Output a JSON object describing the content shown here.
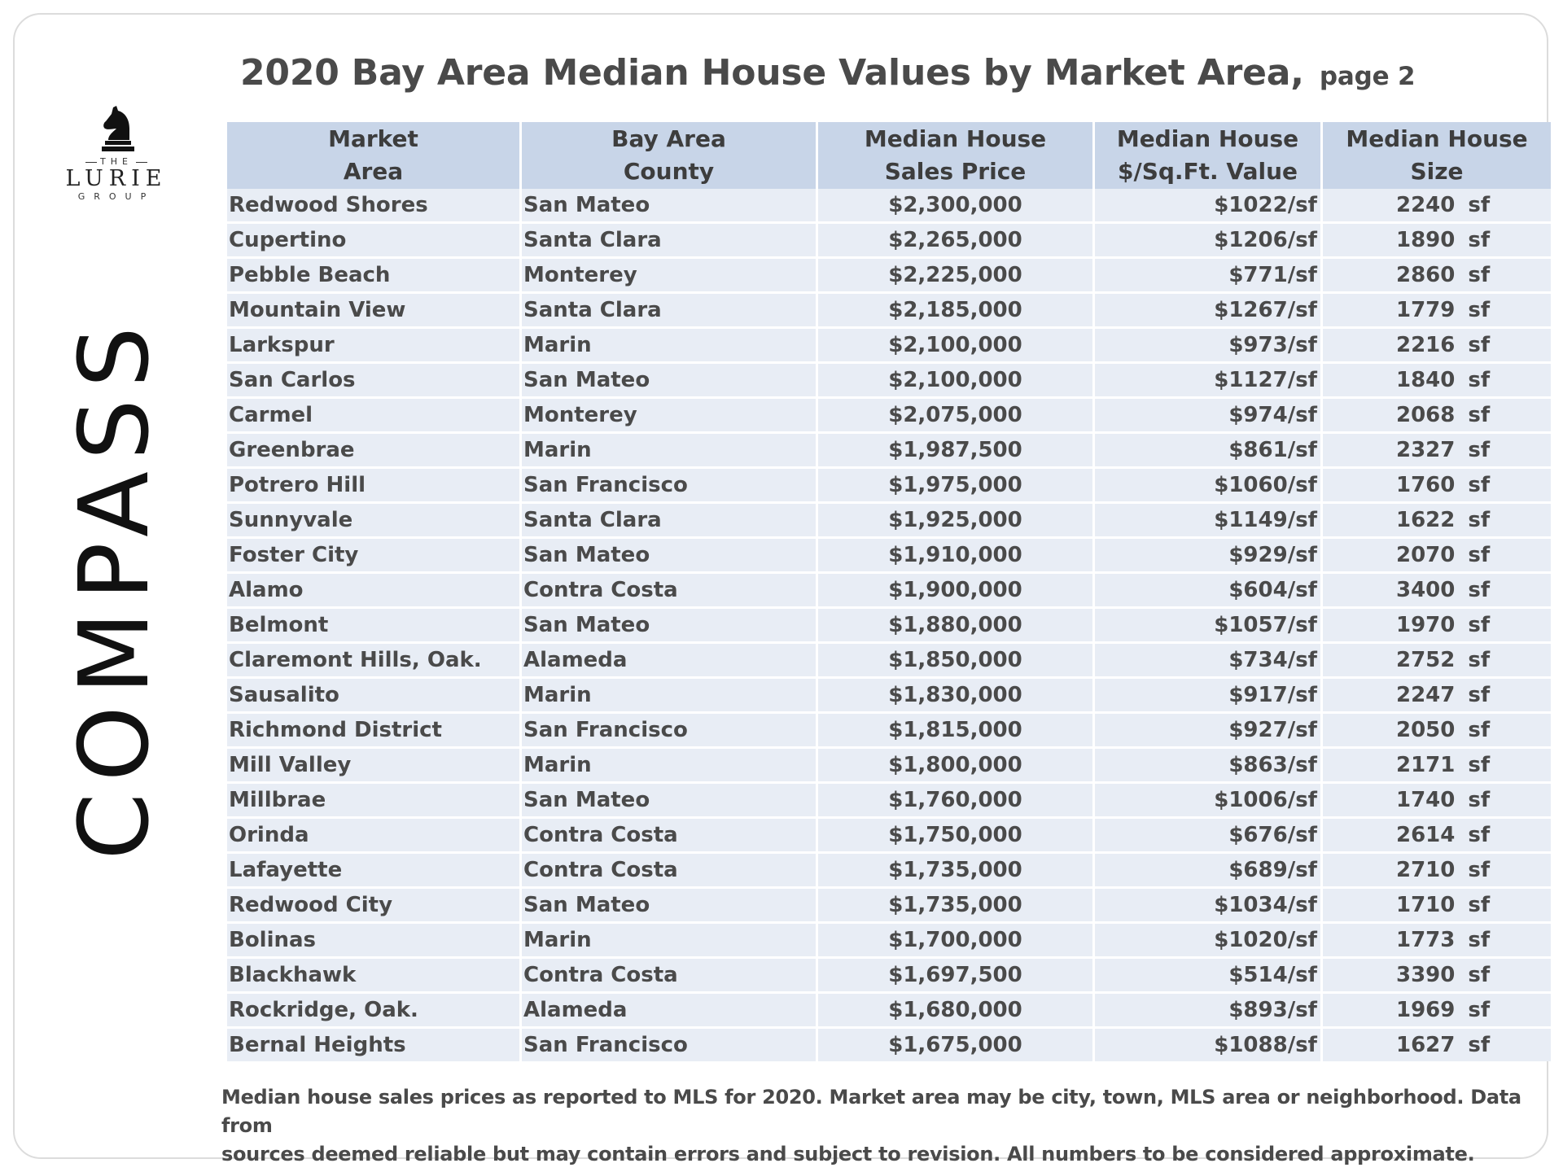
{
  "title": {
    "main": "2020 Bay Area Median House Values by Market Area,",
    "sub": "page 2"
  },
  "logos": {
    "lurie_the": "THE",
    "lurie_name": "LURIE",
    "lurie_group": "GROUP",
    "compass": "COMPASS"
  },
  "table": {
    "headers": [
      [
        "Market",
        "Area"
      ],
      [
        "Bay Area",
        "County"
      ],
      [
        "Median House",
        "Sales Price"
      ],
      [
        "Median House",
        "$/Sq.Ft. Value"
      ],
      [
        "Median House",
        "Size"
      ]
    ],
    "rows": [
      [
        "Redwood Shores",
        "San Mateo",
        "$2,300,000",
        "$1022/sf",
        "2240",
        "sf"
      ],
      [
        "Cupertino",
        "Santa Clara",
        "$2,265,000",
        "$1206/sf",
        "1890",
        "sf"
      ],
      [
        "Pebble Beach",
        "Monterey",
        "$2,225,000",
        "$771/sf",
        "2860",
        "sf"
      ],
      [
        "Mountain View",
        "Santa Clara",
        "$2,185,000",
        "$1267/sf",
        "1779",
        "sf"
      ],
      [
        "Larkspur",
        "Marin",
        "$2,100,000",
        "$973/sf",
        "2216",
        "sf"
      ],
      [
        "San Carlos",
        "San Mateo",
        "$2,100,000",
        "$1127/sf",
        "1840",
        "sf"
      ],
      [
        "Carmel",
        "Monterey",
        "$2,075,000",
        "$974/sf",
        "2068",
        "sf"
      ],
      [
        "Greenbrae",
        "Marin",
        "$1,987,500",
        "$861/sf",
        "2327",
        "sf"
      ],
      [
        "Potrero Hill",
        "San Francisco",
        "$1,975,000",
        "$1060/sf",
        "1760",
        "sf"
      ],
      [
        "Sunnyvale",
        "Santa Clara",
        "$1,925,000",
        "$1149/sf",
        "1622",
        "sf"
      ],
      [
        "Foster City",
        "San Mateo",
        "$1,910,000",
        "$929/sf",
        "2070",
        "sf"
      ],
      [
        "Alamo",
        "Contra Costa",
        "$1,900,000",
        "$604/sf",
        "3400",
        "sf"
      ],
      [
        "Belmont",
        "San Mateo",
        "$1,880,000",
        "$1057/sf",
        "1970",
        "sf"
      ],
      [
        "Claremont Hills, Oak.",
        "Alameda",
        "$1,850,000",
        "$734/sf",
        "2752",
        "sf"
      ],
      [
        "Sausalito",
        "Marin",
        "$1,830,000",
        "$917/sf",
        "2247",
        "sf"
      ],
      [
        "Richmond District",
        "San Francisco",
        "$1,815,000",
        "$927/sf",
        "2050",
        "sf"
      ],
      [
        "Mill Valley",
        "Marin",
        "$1,800,000",
        "$863/sf",
        "2171",
        "sf"
      ],
      [
        "Millbrae",
        "San Mateo",
        "$1,760,000",
        "$1006/sf",
        "1740",
        "sf"
      ],
      [
        "Orinda",
        "Contra Costa",
        "$1,750,000",
        "$676/sf",
        "2614",
        "sf"
      ],
      [
        "Lafayette",
        "Contra Costa",
        "$1,735,000",
        "$689/sf",
        "2710",
        "sf"
      ],
      [
        "Redwood City",
        "San Mateo",
        "$1,735,000",
        "$1034/sf",
        "1710",
        "sf"
      ],
      [
        "Bolinas",
        "Marin",
        "$1,700,000",
        "$1020/sf",
        "1773",
        "sf"
      ],
      [
        "Blackhawk",
        "Contra Costa",
        "$1,697,500",
        "$514/sf",
        "3390",
        "sf"
      ],
      [
        "Rockridge, Oak.",
        "Alameda",
        "$1,680,000",
        "$893/sf",
        "1969",
        "sf"
      ],
      [
        "Bernal Heights",
        "San Francisco",
        "$1,675,000",
        "$1088/sf",
        "1627",
        "sf"
      ]
    ]
  },
  "footer": {
    "line1": "Median house sales prices as reported to MLS for 2020.  Market area may be city, town, MLS area or neighborhood. Data from",
    "line2": "sources deemed reliable but may contain errors and subject to revision. All numbers to be considered approximate."
  },
  "colors": {
    "header_bg": "#c8d5e8",
    "row_bg": "#e8edf5",
    "text": "#4a4a4a"
  }
}
